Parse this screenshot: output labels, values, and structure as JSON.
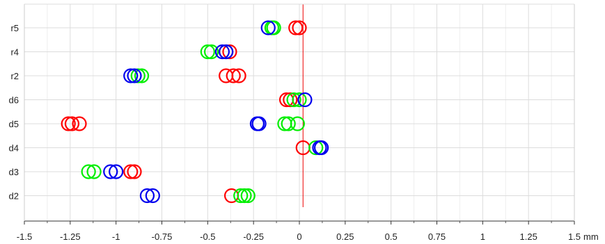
{
  "chart_data": {
    "type": "scatter",
    "title": "",
    "xlabel": "",
    "ylabel": "",
    "x_unit": "mm",
    "xlim": [
      -1.5,
      1.5
    ],
    "x_ticks": [
      "-1.5",
      "-1.25",
      "-1",
      "-0.75",
      "-0.5",
      "-0.25",
      "0",
      "0.25",
      "0.5",
      "0.75",
      "1",
      "1.25",
      "1.5"
    ],
    "x_tick_values": [
      -1.5,
      -1.25,
      -1,
      -0.75,
      -0.5,
      -0.25,
      0,
      0.25,
      0.5,
      0.75,
      1,
      1.25,
      1.5
    ],
    "categories": [
      "r5",
      "r4",
      "r2",
      "d6",
      "d5",
      "d4",
      "d3",
      "d2"
    ],
    "grid": true,
    "reference_line": {
      "x": 0.02,
      "color": "#ee0000"
    },
    "marker": "open-circle",
    "series": [
      {
        "color": "#ff0000",
        "points": [
          {
            "cat": "r5",
            "x": 0.0
          },
          {
            "cat": "r5",
            "x": -0.02
          },
          {
            "cat": "r4",
            "x": -0.4
          },
          {
            "cat": "r4",
            "x": -0.38
          },
          {
            "cat": "r2",
            "x": -0.4
          },
          {
            "cat": "r2",
            "x": -0.36
          },
          {
            "cat": "r2",
            "x": -0.33
          },
          {
            "cat": "d6",
            "x": -0.07
          },
          {
            "cat": "d6",
            "x": -0.05
          },
          {
            "cat": "d5",
            "x": -1.26
          },
          {
            "cat": "d5",
            "x": -1.24
          },
          {
            "cat": "d5",
            "x": -1.2
          },
          {
            "cat": "d4",
            "x": 0.02
          },
          {
            "cat": "d3",
            "x": -0.92
          },
          {
            "cat": "d3",
            "x": -0.9
          },
          {
            "cat": "d2",
            "x": -0.37
          }
        ]
      },
      {
        "color": "#00ee00",
        "points": [
          {
            "cat": "r5",
            "x": -0.15
          },
          {
            "cat": "r5",
            "x": -0.14
          },
          {
            "cat": "r4",
            "x": -0.5
          },
          {
            "cat": "r4",
            "x": -0.48
          },
          {
            "cat": "r2",
            "x": -0.88
          },
          {
            "cat": "r2",
            "x": -0.86
          },
          {
            "cat": "d6",
            "x": -0.03
          },
          {
            "cat": "d6",
            "x": 0.0
          },
          {
            "cat": "d5",
            "x": -0.08
          },
          {
            "cat": "d5",
            "x": -0.06
          },
          {
            "cat": "d5",
            "x": -0.01
          },
          {
            "cat": "d4",
            "x": 0.09
          },
          {
            "cat": "d3",
            "x": -1.15
          },
          {
            "cat": "d3",
            "x": -1.12
          },
          {
            "cat": "d2",
            "x": -0.32
          },
          {
            "cat": "d2",
            "x": -0.3
          },
          {
            "cat": "d2",
            "x": -0.28
          }
        ]
      },
      {
        "color": "#0000ee",
        "points": [
          {
            "cat": "r5",
            "x": -0.17
          },
          {
            "cat": "r4",
            "x": -0.42
          },
          {
            "cat": "r4",
            "x": -0.4
          },
          {
            "cat": "r2",
            "x": -0.92
          },
          {
            "cat": "r2",
            "x": -0.9
          },
          {
            "cat": "d6",
            "x": 0.03
          },
          {
            "cat": "d5",
            "x": -0.23
          },
          {
            "cat": "d5",
            "x": -0.22
          },
          {
            "cat": "d4",
            "x": 0.11
          },
          {
            "cat": "d4",
            "x": 0.12
          },
          {
            "cat": "d3",
            "x": -1.03
          },
          {
            "cat": "d3",
            "x": -1.0
          },
          {
            "cat": "d2",
            "x": -0.83
          },
          {
            "cat": "d2",
            "x": -0.8
          }
        ]
      }
    ]
  }
}
